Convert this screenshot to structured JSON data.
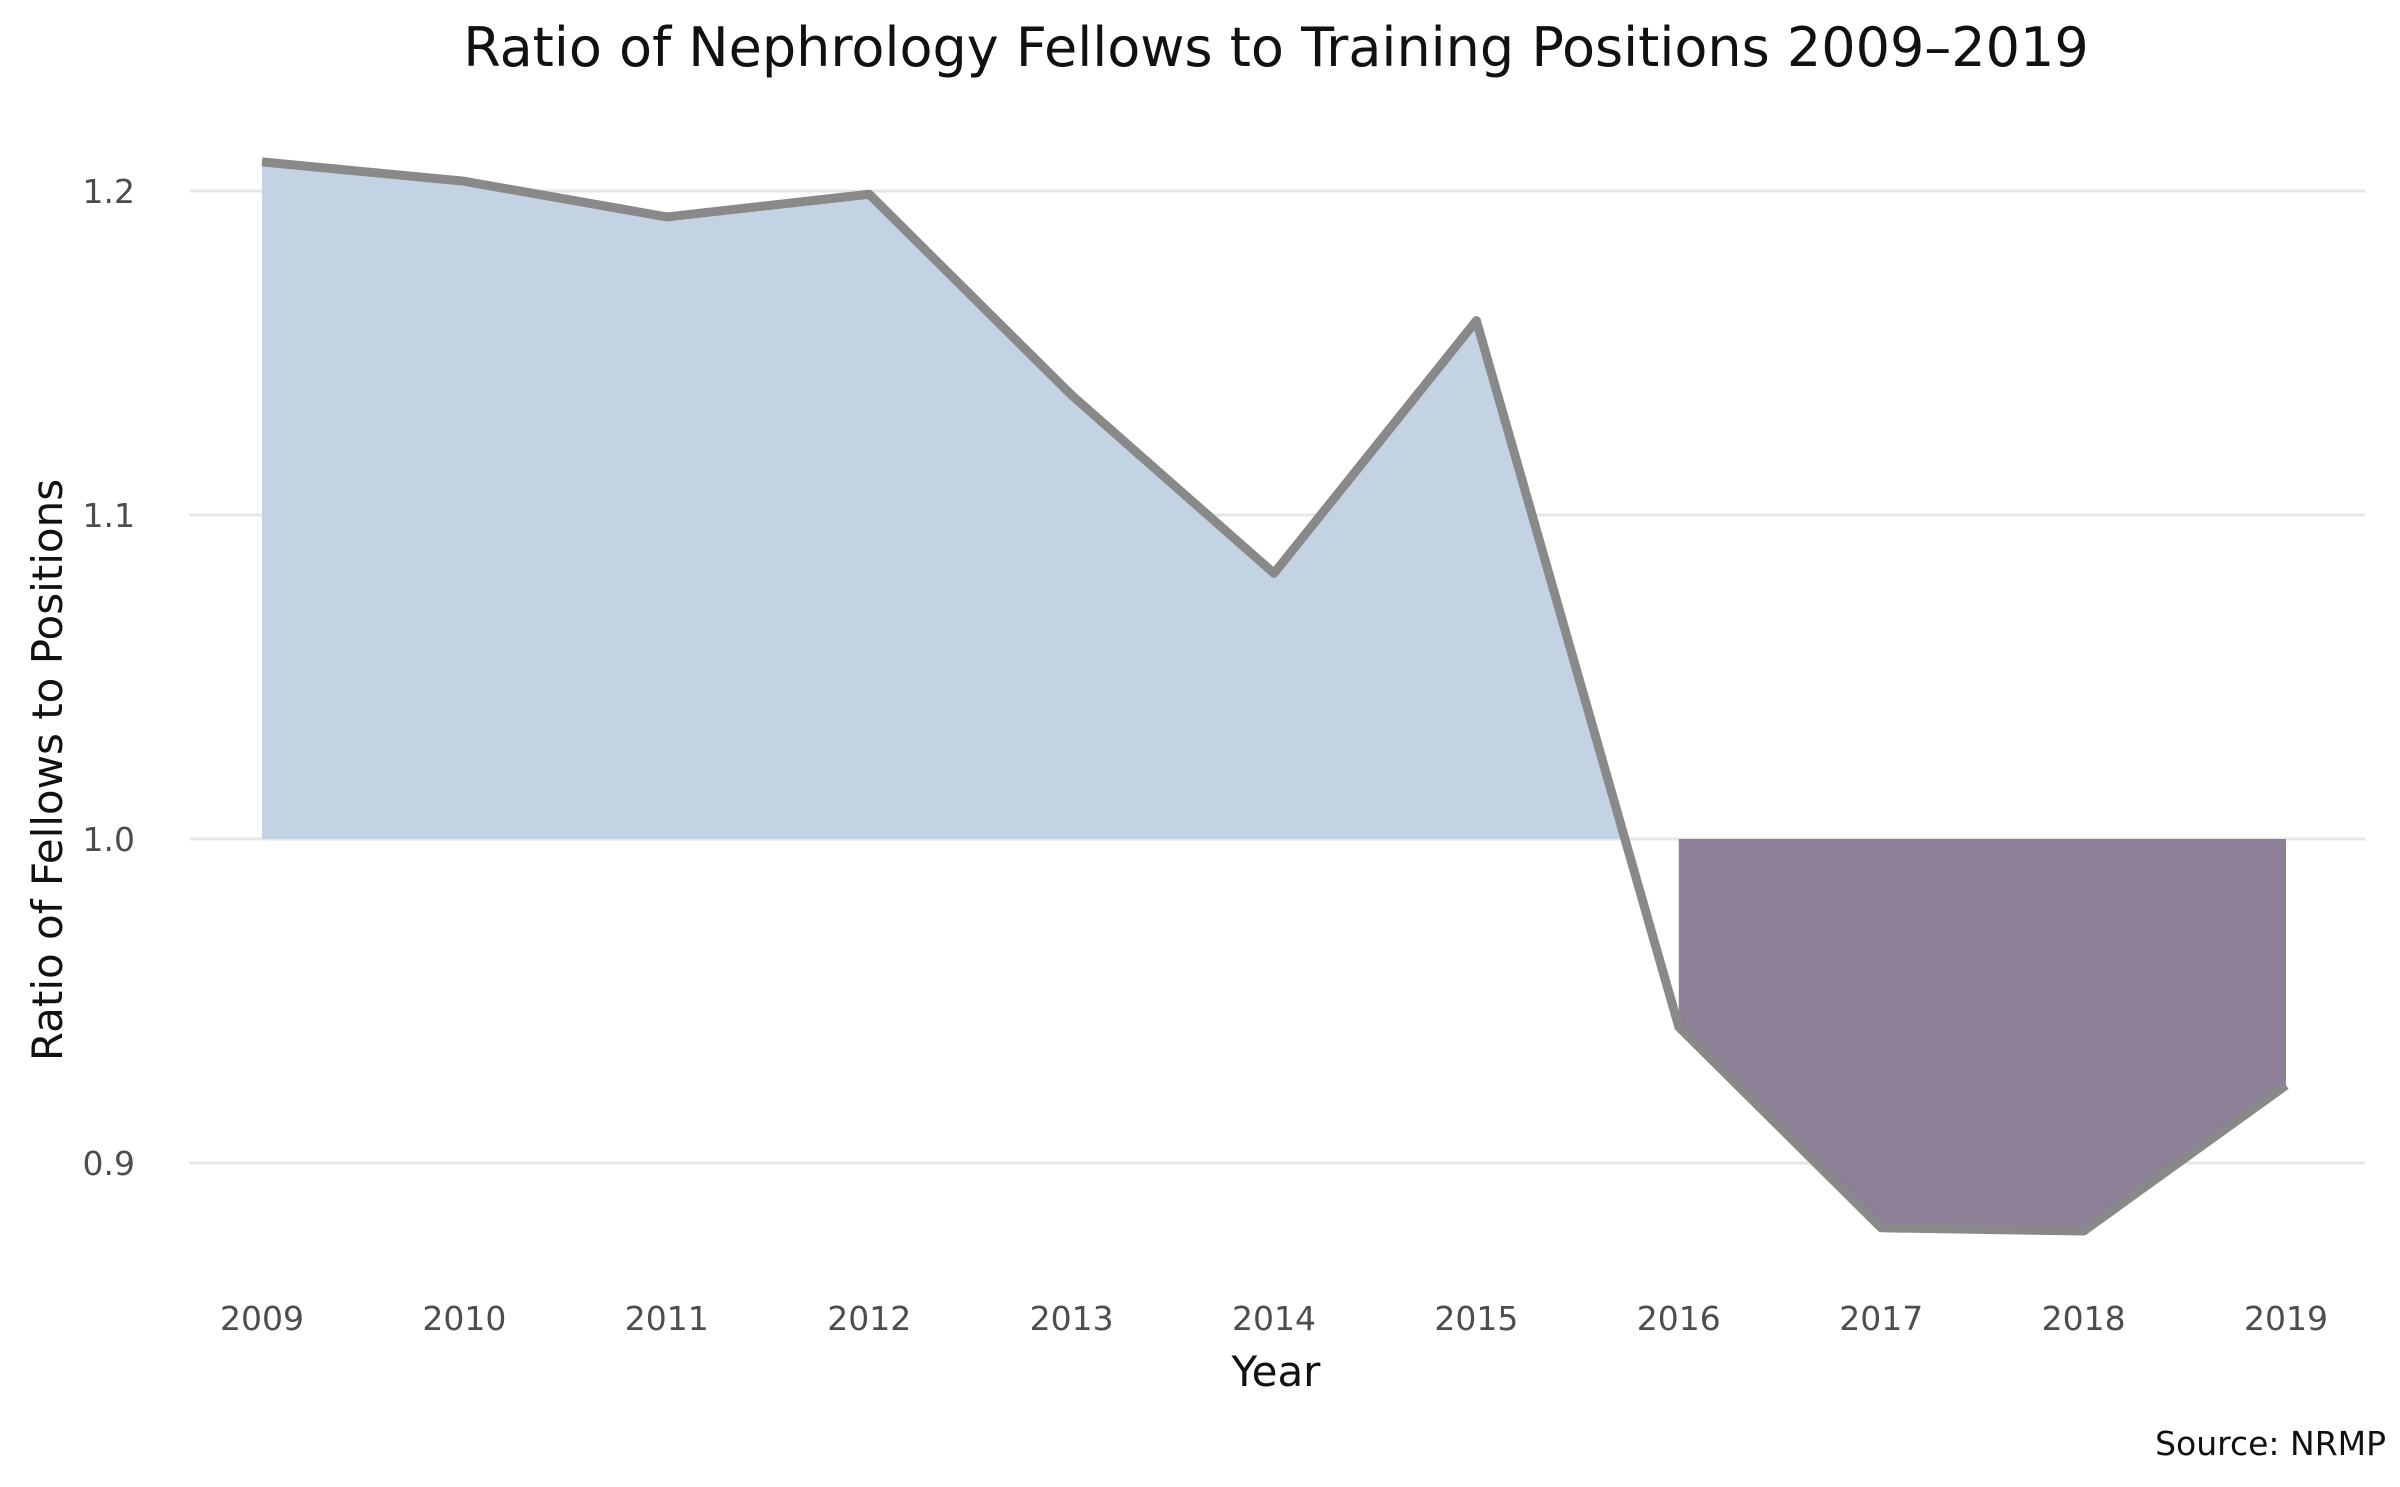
{
  "chart_data": {
    "type": "area",
    "title": "Ratio of Nephrology Fellows to Training Positions 2009–2019",
    "xlabel": "Year",
    "ylabel": "Ratio of Fellows to Positions",
    "caption": "Source: NRMP",
    "x": [
      2009,
      2010,
      2011,
      2012,
      2013,
      2014,
      2015,
      2016,
      2017,
      2018,
      2019
    ],
    "y_ticks": [
      0.9,
      1.0,
      1.1,
      1.2
    ],
    "y_tick_labels": [
      "0.9",
      "1.0",
      "1.1",
      "1.2"
    ],
    "ylim": [
      0.86,
      1.225
    ],
    "baseline": 1.0,
    "grid": "horizontal",
    "series": [
      {
        "values": [
          1.209,
          1.203,
          1.192,
          1.199,
          1.137,
          1.082,
          1.16,
          0.942,
          0.88,
          0.879,
          0.924
        ]
      }
    ],
    "colors": {
      "above_fill": "#c3d3e3",
      "below_fill": "#8c8097",
      "line": "#898989",
      "grid": "#e6e6e6"
    }
  }
}
